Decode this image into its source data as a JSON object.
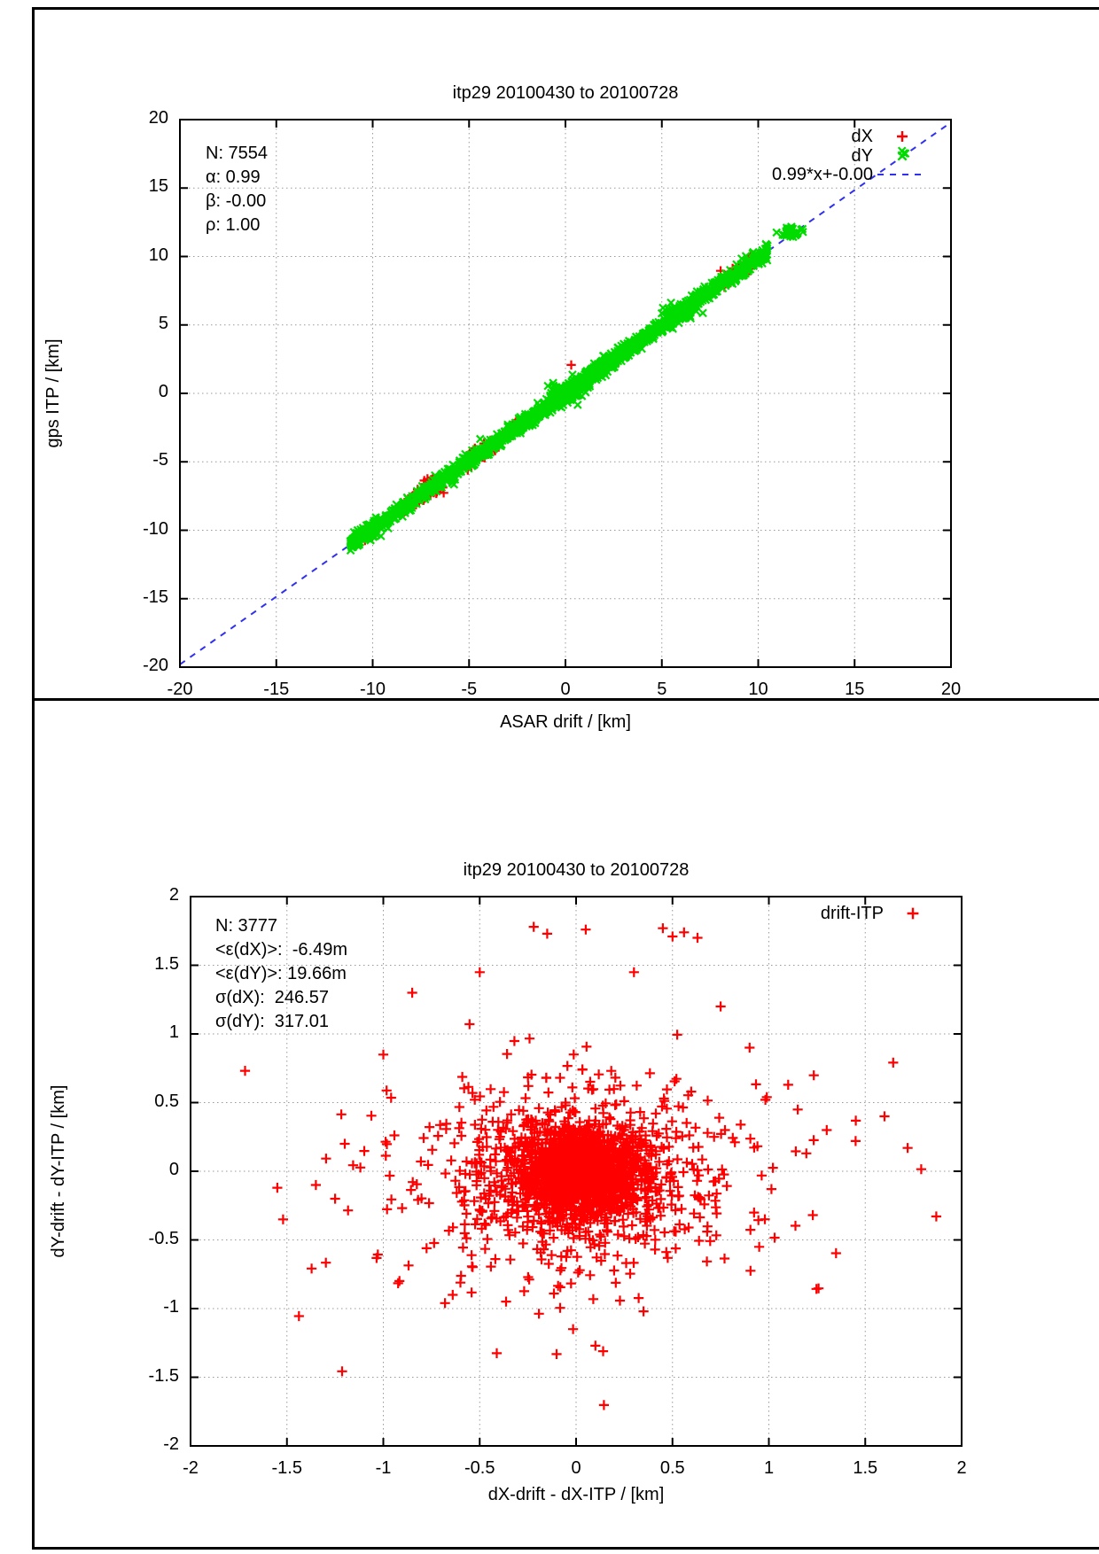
{
  "page": {
    "background": "#ffffff",
    "frame_color": "#000000"
  },
  "chart_data": [
    {
      "type": "scatter",
      "title": "itp29 20100430 to 20100728",
      "xlabel": "ASAR drift / [km]",
      "ylabel": "gps ITP / [km]",
      "xlim": [
        -20,
        20
      ],
      "ylim": [
        -20,
        20
      ],
      "xtick_values": [
        -20,
        -15,
        -10,
        -5,
        0,
        5,
        10,
        15,
        20
      ],
      "xtick_labels": [
        "-20",
        "-15",
        "-10",
        "-5",
        "0",
        "5",
        "10",
        "15",
        "20"
      ],
      "ytick_values": [
        -20,
        -15,
        -10,
        -5,
        0,
        5,
        10,
        15,
        20
      ],
      "ytick_labels": [
        "-20",
        "-15",
        "-10",
        "-5",
        "0",
        "5",
        "10",
        "15",
        "20"
      ],
      "grid": true,
      "grid_color": "#999999",
      "stats_lines": [
        "N: 7554",
        "α: 0.99",
        "β: -0.00",
        "ρ: 1.00"
      ],
      "legend_position": "top-right-inside",
      "legend": [
        {
          "label": "dX",
          "marker": "plus",
          "color": "#ff0000"
        },
        {
          "label": "dY",
          "marker": "cross",
          "color": "#00dc00"
        },
        {
          "label": "0.99*x+-0.00",
          "marker": "dash",
          "color": "#3030f0"
        }
      ],
      "fit_line": {
        "label": "0.99*x+-0.00",
        "slope": 0.99,
        "intercept": -0.0,
        "color": "#3030f0",
        "style": "dashed"
      },
      "series": [
        {
          "name": "dX",
          "color": "#ff0000",
          "marker": "plus",
          "seed": 101,
          "relation": {
            "slope": 0.99,
            "intercept": 0
          },
          "segments": [
            [
              -10.5,
              -9.6,
              25,
              0.22
            ],
            [
              -8.4,
              -6.4,
              110,
              0.26
            ],
            [
              -5.1,
              -3.4,
              70,
              0.24
            ],
            [
              -3.1,
              -2.1,
              45,
              0.22
            ],
            [
              -1.6,
              0.4,
              35,
              0.2
            ],
            [
              2.3,
              3.1,
              30,
              0.2
            ],
            [
              8.2,
              9.7,
              80,
              0.26
            ]
          ],
          "blobs": [
            [
              -7.0,
              -6.93,
              40,
              0.3,
              0.25
            ],
            [
              -4.5,
              -4.46,
              25,
              0.25,
              0.2
            ],
            [
              9.0,
              8.91,
              30,
              0.25,
              0.2
            ]
          ],
          "points": [
            [
              0.3,
              2.08
            ],
            [
              8.05,
              8.95
            ],
            [
              11.55,
              11.8
            ],
            [
              -2.55,
              -1.95
            ],
            [
              9.6,
              10.05
            ]
          ]
        },
        {
          "name": "dY",
          "color": "#00dc00",
          "marker": "cross",
          "seed": 202,
          "relation": {
            "slope": 0.99,
            "intercept": 0
          },
          "segments": [
            [
              -11.2,
              -9.3,
              150,
              0.28
            ],
            [
              -9.3,
              -7.6,
              120,
              0.25
            ],
            [
              -7.6,
              -5.4,
              170,
              0.25
            ],
            [
              -5.4,
              -3.1,
              200,
              0.25
            ],
            [
              -3.1,
              -1.0,
              220,
              0.27
            ],
            [
              -1.0,
              1.3,
              260,
              0.3
            ],
            [
              1.3,
              3.3,
              220,
              0.3
            ],
            [
              3.3,
              5.3,
              170,
              0.26
            ],
            [
              5.3,
              7.2,
              170,
              0.3
            ],
            [
              7.2,
              8.7,
              120,
              0.26
            ],
            [
              8.7,
              10.5,
              150,
              0.3
            ]
          ],
          "blobs": [
            [
              -10.35,
              -10.25,
              40,
              0.3,
              0.22
            ],
            [
              6.0,
              5.92,
              50,
              0.4,
              0.3
            ],
            [
              0.0,
              0.0,
              70,
              0.45,
              0.3
            ],
            [
              11.72,
              11.72,
              50,
              0.25,
              0.18
            ],
            [
              17.4,
              17.62,
              3,
              0.15,
              0.1
            ]
          ],
          "points": []
        }
      ]
    },
    {
      "type": "scatter",
      "title": "itp29 20100430 to 20100728",
      "xlabel": "dX-drift - dX-ITP / [km]",
      "ylabel": "dY-drift - dY-ITP / [km]",
      "xlim": [
        -2,
        2
      ],
      "ylim": [
        -2,
        2
      ],
      "xtick_values": [
        -2,
        -1.5,
        -1,
        -0.5,
        0,
        0.5,
        1,
        1.5,
        2
      ],
      "xtick_labels": [
        "-2",
        "-1.5",
        "-1",
        "-0.5",
        "0",
        "0.5",
        "1",
        "1.5",
        "2"
      ],
      "ytick_values": [
        -2,
        -1.5,
        -1,
        -0.5,
        0,
        0.5,
        1,
        1.5,
        2
      ],
      "ytick_labels": [
        "-2",
        "-1.5",
        "-1",
        "-0.5",
        "0",
        "0.5",
        "1",
        "1.5",
        "2"
      ],
      "grid": true,
      "grid_color": "#999999",
      "stats_lines": [
        "N: 3777",
        "<ε(dX)>:  -6.49m",
        "<ε(dY)>: 19.66m",
        "σ(dX):  246.57",
        "σ(dY):  317.01"
      ],
      "legend_position": "top-right-inside",
      "legend": [
        {
          "label": "drift-ITP",
          "marker": "plus",
          "color": "#ff0000"
        }
      ],
      "series": [
        {
          "name": "drift-ITP",
          "color": "#ff0000",
          "marker": "plus",
          "seed": 303,
          "gauss_layers": [
            [
              0.02,
              -0.02,
              1300,
              0.15,
              0.15
            ],
            [
              0.0,
              0.0,
              650,
              0.3,
              0.28
            ],
            [
              0.0,
              -0.05,
              260,
              0.55,
              0.45
            ],
            [
              0.05,
              0.0,
              90,
              0.85,
              0.6
            ]
          ],
          "points": [
            [
              -1.55,
              -0.12
            ],
            [
              -1.52,
              -0.35
            ],
            [
              1.72,
              0.17
            ],
            [
              -0.22,
              1.78
            ],
            [
              -0.15,
              1.73
            ],
            [
              0.05,
              1.76
            ],
            [
              0.45,
              1.77
            ],
            [
              0.5,
              1.71
            ],
            [
              0.56,
              1.74
            ],
            [
              0.63,
              1.7
            ],
            [
              0.1,
              -1.27
            ],
            [
              0.14,
              -1.31
            ],
            [
              -0.68,
              -0.96
            ],
            [
              -0.64,
              -0.9
            ],
            [
              0.35,
              -1.02
            ],
            [
              0.9,
              0.9
            ],
            [
              1.1,
              0.63
            ],
            [
              1.15,
              0.45
            ],
            [
              -1.2,
              0.2
            ],
            [
              -1.25,
              -0.2
            ],
            [
              -1.0,
              0.85
            ],
            [
              0.95,
              -0.55
            ],
            [
              1.3,
              0.3
            ],
            [
              1.45,
              0.22
            ],
            [
              -0.85,
              1.3
            ],
            [
              -0.5,
              1.45
            ],
            [
              0.3,
              1.45
            ],
            [
              0.75,
              1.2
            ],
            [
              1.6,
              0.4
            ],
            [
              -1.35,
              -0.1
            ]
          ]
        }
      ]
    }
  ]
}
